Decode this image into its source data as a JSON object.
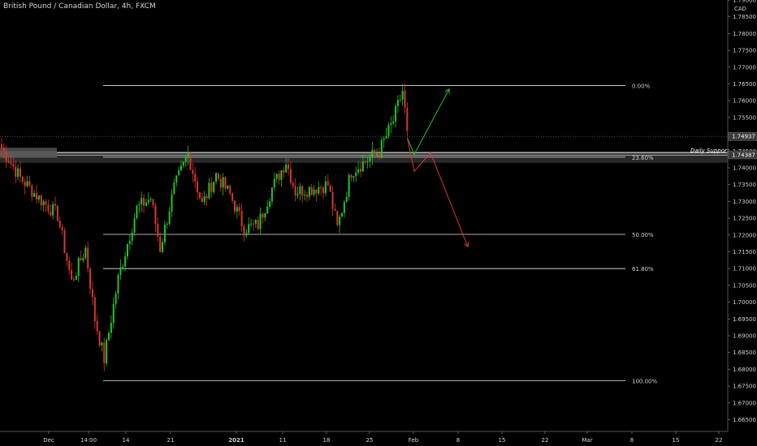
{
  "header": {
    "title": "British Pound / Canadian Dollar, 4h, FXCM",
    "currency": "CAD"
  },
  "colors": {
    "background": "#000000",
    "up": "#26c22b",
    "down": "#d43a2a",
    "level_line": "#e6e6e6",
    "axis_text": "#cfd2da"
  },
  "chart_data": {
    "type": "candlestick",
    "y_axis": {
      "position": "right",
      "ylim": [
        1.6615,
        1.79
      ],
      "tick_labels": [
        "1.79000",
        "1.78500",
        "1.78000",
        "1.77500",
        "1.77000",
        "1.76500",
        "1.76000",
        "1.75500",
        "1.75000",
        "1.74500",
        "1.74000",
        "1.73500",
        "1.73000",
        "1.72500",
        "1.72000",
        "1.71500",
        "1.71000",
        "1.70500",
        "1.70000",
        "1.69500",
        "1.69000",
        "1.68500",
        "1.68000",
        "1.67500",
        "1.67000",
        "1.66500"
      ]
    },
    "x_axis": {
      "tick_labels": [
        "Dec",
        "14:00",
        "14",
        "21",
        "2021",
        "11",
        "18",
        "25",
        "Feb",
        "8",
        "15",
        "22",
        "Mar",
        "8",
        "15",
        "22"
      ]
    },
    "price_labels": [
      {
        "label": "1.74937",
        "value": 1.74937
      },
      {
        "label": "1.74387",
        "value": 1.74387
      }
    ],
    "fibonacci_levels": [
      {
        "label": "0.00%",
        "value": 1.7645
      },
      {
        "label": "23.60%",
        "value": 1.7432
      },
      {
        "label": "50.00%",
        "value": 1.7202
      },
      {
        "label": "61.80%",
        "value": 1.71
      },
      {
        "label": "100.00%",
        "value": 1.6766
      }
    ],
    "annotations": [
      {
        "label": "Daily Support",
        "value": 1.7445
      }
    ],
    "series_ohlc_anchors": [
      {
        "t": 0,
        "price": 1.746
      },
      {
        "t": 8,
        "price": 1.737
      },
      {
        "t": 16,
        "price": 1.731
      },
      {
        "t": 24,
        "price": 1.726
      },
      {
        "t": 30,
        "price": 1.706
      },
      {
        "t": 36,
        "price": 1.716
      },
      {
        "t": 40,
        "price": 1.695
      },
      {
        "t": 44,
        "price": 1.683
      },
      {
        "t": 50,
        "price": 1.707
      },
      {
        "t": 58,
        "price": 1.728
      },
      {
        "t": 64,
        "price": 1.731
      },
      {
        "t": 68,
        "price": 1.716
      },
      {
        "t": 74,
        "price": 1.734
      },
      {
        "t": 80,
        "price": 1.744
      },
      {
        "t": 86,
        "price": 1.729
      },
      {
        "t": 92,
        "price": 1.738
      },
      {
        "t": 98,
        "price": 1.732
      },
      {
        "t": 104,
        "price": 1.722
      },
      {
        "t": 110,
        "price": 1.723
      },
      {
        "t": 116,
        "price": 1.734
      },
      {
        "t": 122,
        "price": 1.742
      },
      {
        "t": 126,
        "price": 1.733
      },
      {
        "t": 134,
        "price": 1.734
      },
      {
        "t": 140,
        "price": 1.735
      },
      {
        "t": 144,
        "price": 1.722
      },
      {
        "t": 150,
        "price": 1.739
      },
      {
        "t": 156,
        "price": 1.742
      },
      {
        "t": 162,
        "price": 1.745
      },
      {
        "t": 168,
        "price": 1.754
      },
      {
        "t": 172,
        "price": 1.763
      },
      {
        "t": 174,
        "price": 1.751
      }
    ],
    "projection_up": [
      {
        "t": 174,
        "price": 1.749
      },
      {
        "t": 177,
        "price": 1.744
      },
      {
        "t": 192,
        "price": 1.7635
      }
    ],
    "projection_down": [
      {
        "t": 174,
        "price": 1.749
      },
      {
        "t": 177,
        "price": 1.739
      },
      {
        "t": 184,
        "price": 1.7445
      },
      {
        "t": 200,
        "price": 1.7165
      }
    ]
  }
}
